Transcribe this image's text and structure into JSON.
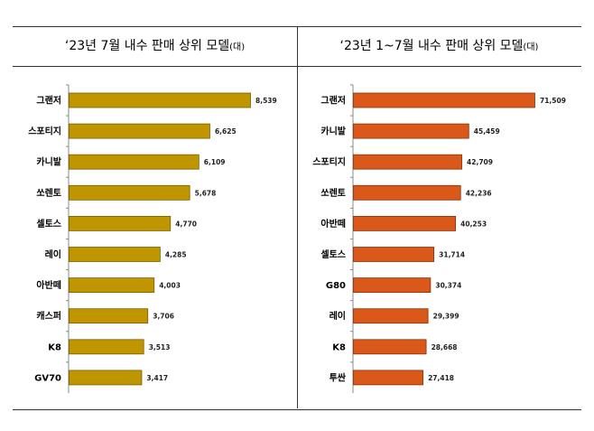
{
  "colors": {
    "left_bar": "#c09600",
    "left_bar_edge": "#7a5e00",
    "right_bar": "#d9581a",
    "right_bar_edge": "#8a3208"
  },
  "chart_data": [
    {
      "type": "bar",
      "orientation": "horizontal",
      "title": "‘23년 7월 내수 판매 상위 모델",
      "unit": "(대)",
      "categories": [
        "그랜저",
        "스포티지",
        "카니발",
        "쏘렌토",
        "셀토스",
        "레이",
        "아반떼",
        "캐스퍼",
        "K8",
        "GV70"
      ],
      "values": [
        8539,
        6625,
        6109,
        5678,
        4770,
        4285,
        4003,
        3706,
        3513,
        3417
      ],
      "value_labels": [
        "8,539",
        "6,625",
        "6,109",
        "5,678",
        "4,770",
        "4,285",
        "4,003",
        "3,706",
        "3,513",
        "3,417"
      ],
      "xlim": [
        0,
        8539
      ],
      "grid": false,
      "legend": "none"
    },
    {
      "type": "bar",
      "orientation": "horizontal",
      "title": "‘23년 1~7월 내수 판매 상위 모델",
      "unit": "(대)",
      "categories": [
        "그랜저",
        "카니발",
        "스포티지",
        "쏘렌토",
        "아반떼",
        "셀토스",
        "G80",
        "레이",
        "K8",
        "투싼"
      ],
      "values": [
        71509,
        45459,
        42709,
        42236,
        40253,
        31714,
        30374,
        29399,
        28668,
        27418
      ],
      "value_labels": [
        "71,509",
        "45,459",
        "42,709",
        "42,236",
        "40,253",
        "31,714",
        "30,374",
        "29,399",
        "28,668",
        "27,418"
      ],
      "xlim": [
        0,
        71509
      ],
      "grid": false,
      "legend": "none"
    }
  ]
}
